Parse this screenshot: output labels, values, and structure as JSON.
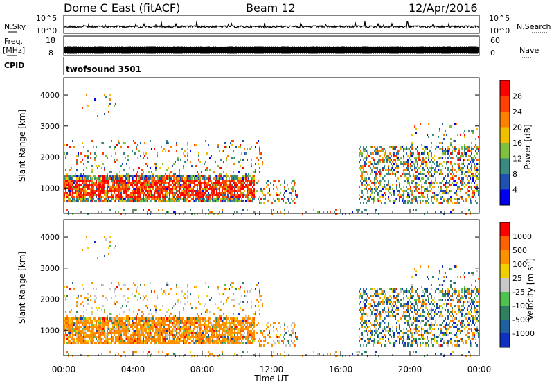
{
  "header": {
    "station": "Dome C East (fitACF)",
    "beam": "Beam 12",
    "date": "12/Apr/2016"
  },
  "noise_panel": {
    "left_label": "N.Sky",
    "right_label": "N.Search",
    "ticks_left": [
      "10^5",
      "10^0"
    ],
    "ticks_right": [
      "10^5",
      "10^0"
    ]
  },
  "freq_panel": {
    "left_label_top": "Freq.",
    "left_label_bottom": "[MHz]",
    "right_label": "Nave",
    "ticks_left": [
      "18",
      "8"
    ],
    "ticks_right": [
      "60",
      "0"
    ]
  },
  "cpid_panel": {
    "label": "CPID",
    "program": "twofsound 3501"
  },
  "chart_data": [
    {
      "type": "heatmap",
      "quantity": "power",
      "ylabel": "Slant Range [km]",
      "ylim": [
        180,
        4560
      ],
      "yticks": [
        "1000",
        "2000",
        "3000",
        "4000"
      ],
      "xlim_hours": [
        0,
        24
      ],
      "colorbar": {
        "label": "Power [dB]",
        "ticks": [
          "4",
          "8",
          "12",
          "16",
          "20",
          "24",
          "28"
        ],
        "colors": [
          "#0000ee",
          "#2050b0",
          "#3a8a80",
          "#80c040",
          "#f0c000",
          "#ff8000",
          "#ff4000",
          "#ff0000"
        ]
      }
    },
    {
      "type": "heatmap",
      "quantity": "velocity",
      "ylabel": "Slant Range [km]",
      "ylim": [
        180,
        4560
      ],
      "yticks": [
        "1000",
        "2000",
        "3000",
        "4000"
      ],
      "xlim_hours": [
        0,
        24
      ],
      "colorbar": {
        "label": "Velocity [m s",
        "label_sup": "-1",
        "label_end": "]",
        "ticks": [
          "1000",
          "500",
          "100",
          "25",
          "-25",
          "-100",
          "-500",
          "-1000"
        ],
        "colors": [
          "#1030c0",
          "#2060a0",
          "#308060",
          "#50c050",
          "#c8c8c8",
          "#f0d000",
          "#ff9000",
          "#ff6000",
          "#ff0000"
        ]
      }
    }
  ],
  "xaxis": {
    "label": "Time UT",
    "ticks": [
      "00:00",
      "04:00",
      "08:00",
      "12:00",
      "16:00",
      "20:00",
      "00:00"
    ]
  }
}
